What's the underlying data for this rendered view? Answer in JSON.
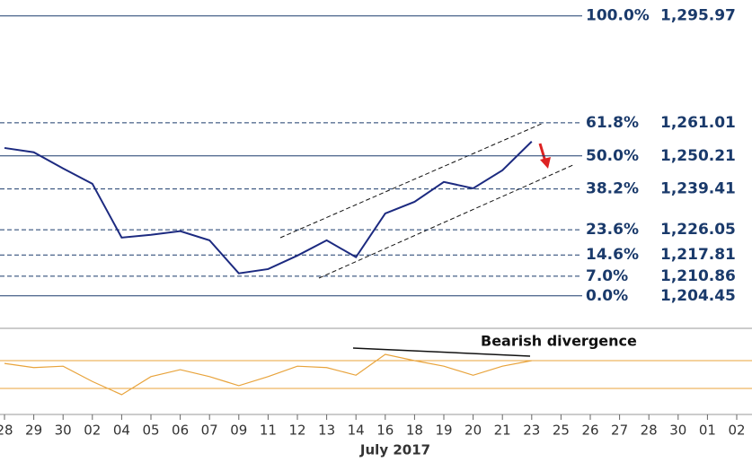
{
  "chart_data": {
    "type": "line",
    "categories": [
      "28",
      "29",
      "30",
      "02",
      "04",
      "05",
      "06",
      "07",
      "09",
      "11",
      "12",
      "13",
      "14",
      "16",
      "18",
      "19",
      "20",
      "21",
      "23",
      "25",
      "26",
      "27",
      "28",
      "30",
      "01",
      "02"
    ],
    "x_label": "July 2017",
    "ylim": [
      1195,
      1300
    ],
    "series": [
      {
        "color": "#1c2a80",
        "values": [
          1252.8,
          1251.4,
          1246.1,
          1241.1,
          1223.5,
          1224.4,
          1225.6,
          1222.6,
          1211.8,
          1213.2,
          1217.6,
          1222.6,
          1217.1,
          1231.4,
          1235.2,
          1241.7,
          1239.6,
          1245.5,
          1254.9,
          null,
          null,
          null,
          null,
          null,
          null,
          null
        ]
      },
      {
        "color": "#e8a33b",
        "panel": "rsi",
        "values": [
          66,
          60,
          62,
          40,
          21,
          47,
          57,
          47,
          34,
          47,
          62,
          60,
          49,
          79,
          70,
          62,
          49,
          62,
          70,
          null,
          null,
          null,
          null,
          null,
          null,
          null
        ]
      }
    ],
    "rsi_ylim": [
      0,
      100
    ],
    "rsi_bands": [
      70,
      30
    ],
    "levels": [
      {
        "ratio": "100.0%",
        "price": {
          "value": 1295.97,
          "label": "1,295.97"
        },
        "dashed": false
      },
      {
        "ratio": "61.8%",
        "price": {
          "value": 1261.01,
          "label": "1,261.01"
        },
        "dashed": true
      },
      {
        "ratio": "50.0%",
        "price": {
          "value": 1250.21,
          "label": "1,250.21"
        },
        "dashed": false
      },
      {
        "ratio": "38.2%",
        "price": {
          "value": 1239.41,
          "label": "1,239.41"
        },
        "dashed": true
      },
      {
        "ratio": "23.6%",
        "price": {
          "value": 1226.05,
          "label": "1,226.05"
        },
        "dashed": true
      },
      {
        "ratio": "14.6%",
        "price": {
          "value": 1217.81,
          "label": "1,217.81"
        },
        "dashed": true
      },
      {
        "ratio": "7.0%",
        "price": {
          "value": 1210.86,
          "label": "1,210.86"
        },
        "dashed": true
      },
      {
        "ratio": "0.0%",
        "price": {
          "value": 1204.45,
          "label": "1,204.45"
        },
        "dashed": false
      }
    ],
    "annotation": "Bearish divergence"
  }
}
